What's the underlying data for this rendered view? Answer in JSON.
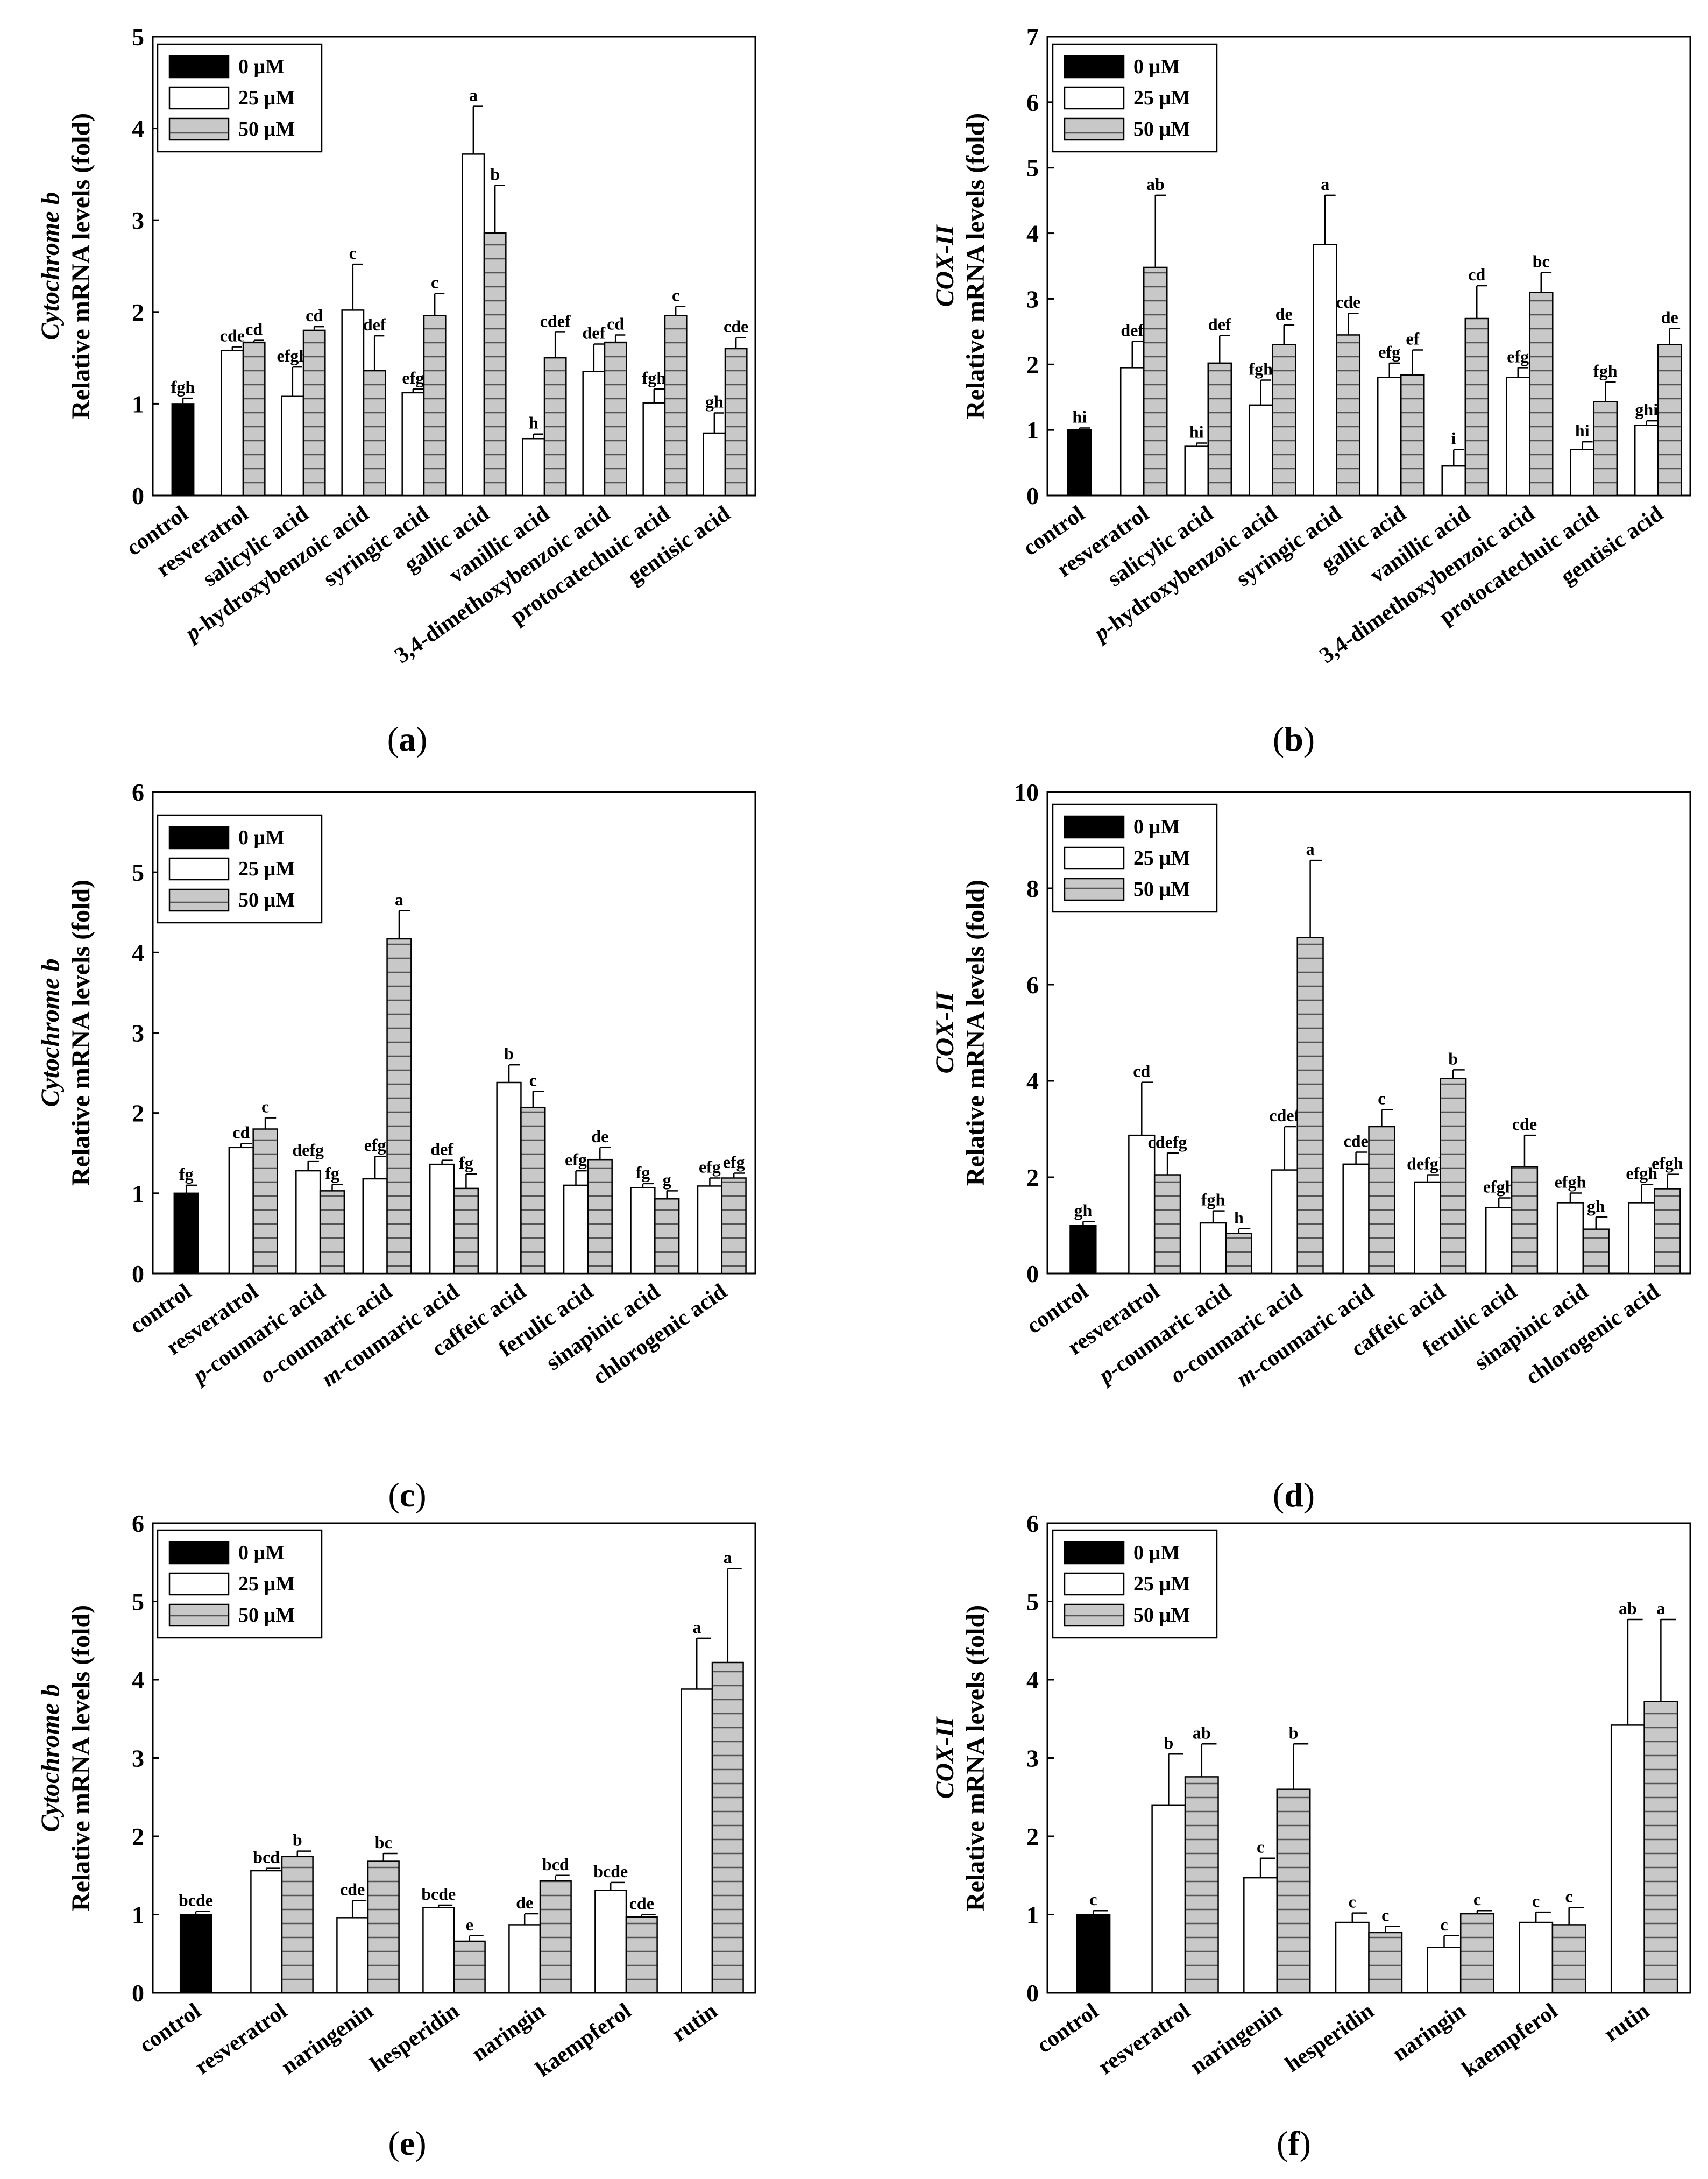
{
  "legend": [
    "0 µM",
    "25 µM",
    "50 µM"
  ],
  "colors": {
    "c0": "#000000",
    "c25": "#ffffff",
    "c50": "#c8c8c8",
    "stripe": "#555555"
  },
  "chart_data": [
    {
      "type": "bar",
      "panel": "a",
      "ylabel_gene": "Cytochrome b",
      "ylabel_unit": "Relative mRNA levels (fold)",
      "ylim": [
        0,
        5
      ],
      "yticks": [
        0,
        1,
        2,
        3,
        4,
        5
      ],
      "legend_position": "top-left",
      "categories": [
        "control",
        "resveratrol",
        "salicylic acid",
        "p-hydroxybenzoic acid",
        "syringic acid",
        "gallic acid",
        "vanillic acid",
        "3,4-dimethoxybenzoic acid",
        "protocatechuic acid",
        "gentisic acid"
      ],
      "series": [
        {
          "name": "25 µM",
          "values": [
            1.0,
            1.58,
            1.08,
            2.02,
            1.12,
            3.72,
            0.62,
            1.35,
            1.01,
            0.68
          ],
          "errors": [
            0.06,
            0.04,
            0.32,
            0.5,
            0.04,
            0.52,
            0.05,
            0.3,
            0.15,
            0.22
          ],
          "labels": [
            "fgh",
            "cde",
            "efgh",
            "c",
            "efg",
            "a",
            "h",
            "def",
            "fgh",
            "gh"
          ]
        },
        {
          "name": "50 µM",
          "values": [
            null,
            1.67,
            1.8,
            1.36,
            1.96,
            2.86,
            1.5,
            1.67,
            1.96,
            1.6
          ],
          "errors": [
            null,
            0.02,
            0.04,
            0.38,
            0.24,
            0.52,
            0.28,
            0.08,
            0.1,
            0.12
          ],
          "labels": [
            null,
            "cd",
            "cd",
            "def",
            "c",
            "b",
            "cdef",
            "cd",
            "c",
            "cde"
          ]
        }
      ]
    },
    {
      "type": "bar",
      "panel": "b",
      "ylabel_gene": "COX-II",
      "ylabel_unit": "Relative mRNA levels (fold)",
      "ylim": [
        0,
        7
      ],
      "yticks": [
        0,
        1,
        2,
        3,
        4,
        5,
        6,
        7
      ],
      "legend_position": "top-left",
      "categories": [
        "control",
        "resveratrol",
        "salicylic acid",
        "p-hydroxybenzoic acid",
        "syringic acid",
        "gallic acid",
        "vanillic acid",
        "3,4-dimethoxybenzoic acid",
        "protocatechuic acid",
        "gentisic acid"
      ],
      "series": [
        {
          "name": "25 µM",
          "values": [
            1.0,
            1.95,
            0.75,
            1.38,
            3.83,
            1.8,
            0.45,
            1.8,
            0.7,
            1.07
          ],
          "errors": [
            0.03,
            0.4,
            0.05,
            0.38,
            0.75,
            0.22,
            0.25,
            0.15,
            0.12,
            0.07
          ],
          "labels": [
            "hi",
            "def",
            "hi",
            "fgh",
            "a",
            "efg",
            "i",
            "efg",
            "hi",
            "ghi"
          ]
        },
        {
          "name": "50 µM",
          "values": [
            null,
            3.48,
            2.02,
            2.3,
            2.45,
            1.84,
            2.7,
            3.1,
            1.43,
            2.3
          ],
          "errors": [
            null,
            1.1,
            0.42,
            0.3,
            0.33,
            0.38,
            0.5,
            0.3,
            0.3,
            0.25
          ],
          "labels": [
            null,
            "ab",
            "def",
            "de",
            "cde",
            "ef",
            "cd",
            "bc",
            "fgh",
            "de"
          ]
        }
      ]
    },
    {
      "type": "bar",
      "panel": "c",
      "ylabel_gene": "Cytochrome b",
      "ylabel_unit": "Relative mRNA levels (fold)",
      "ylim": [
        0,
        6
      ],
      "yticks": [
        0,
        1,
        2,
        3,
        4,
        5,
        6
      ],
      "legend_position": "top-left",
      "categories": [
        "control",
        "resveratrol",
        "p-coumaric acid",
        "o-coumaric acid",
        "m-coumaric acid",
        "caffeic acid",
        "ferulic acid",
        "sinapinic acid",
        "chlorogenic acid"
      ],
      "series": [
        {
          "name": "25 µM",
          "values": [
            1.0,
            1.57,
            1.28,
            1.18,
            1.36,
            2.38,
            1.1,
            1.07,
            1.09
          ],
          "errors": [
            0.1,
            0.05,
            0.12,
            0.28,
            0.05,
            0.22,
            0.18,
            0.05,
            0.1
          ],
          "labels": [
            "fg",
            "cd",
            "defg",
            "efg",
            "def",
            "b",
            "efg",
            "fg",
            "efg"
          ]
        },
        {
          "name": "50 µM",
          "values": [
            null,
            1.8,
            1.03,
            4.17,
            1.06,
            2.07,
            1.42,
            0.93,
            1.19
          ],
          "errors": [
            null,
            0.14,
            0.08,
            0.35,
            0.18,
            0.2,
            0.15,
            0.1,
            0.06
          ],
          "labels": [
            null,
            "c",
            "fg",
            "a",
            "fg",
            "c",
            "de",
            "g",
            "efg"
          ]
        }
      ]
    },
    {
      "type": "bar",
      "panel": "d",
      "ylabel_gene": "COX-II",
      "ylabel_unit": "Relative mRNA levels (fold)",
      "ylim": [
        0,
        10
      ],
      "yticks": [
        0,
        2,
        4,
        6,
        8,
        10
      ],
      "legend_position": "top-left",
      "categories": [
        "control",
        "resveratrol",
        "p-coumaric acid",
        "o-coumaric acid",
        "m-coumaric acid",
        "caffeic acid",
        "ferulic acid",
        "sinapinic acid",
        "chlorogenic acid"
      ],
      "series": [
        {
          "name": "25 µM",
          "values": [
            1.0,
            2.87,
            1.05,
            2.15,
            2.27,
            1.9,
            1.37,
            1.47,
            1.47
          ],
          "errors": [
            0.08,
            1.1,
            0.25,
            0.9,
            0.25,
            0.15,
            0.2,
            0.2,
            0.38
          ],
          "labels": [
            "gh",
            "cd",
            "fgh",
            "cdef",
            "cde",
            "defgh",
            "efgh",
            "efgh",
            "efgh"
          ]
        },
        {
          "name": "50 µM",
          "values": [
            null,
            2.05,
            0.83,
            6.98,
            3.05,
            4.05,
            2.22,
            0.92,
            1.76
          ],
          "errors": [
            null,
            0.45,
            0.1,
            1.6,
            0.35,
            0.18,
            0.65,
            0.25,
            0.3
          ],
          "labels": [
            null,
            "cdefg",
            "h",
            "a",
            "c",
            "b",
            "cde",
            "gh",
            "efgh"
          ]
        }
      ]
    },
    {
      "type": "bar",
      "panel": "e",
      "ylabel_gene": "Cytochrome b",
      "ylabel_unit": "Relative mRNA levels (fold)",
      "ylim": [
        0,
        6
      ],
      "yticks": [
        0,
        1,
        2,
        3,
        4,
        5,
        6
      ],
      "legend_position": "top-left",
      "categories": [
        "control",
        "resveratrol",
        "naringenin",
        "hesperidin",
        "naringin",
        "kaempferol",
        "rutin"
      ],
      "series": [
        {
          "name": "25 µM",
          "values": [
            1.0,
            1.56,
            0.96,
            1.09,
            0.87,
            1.31,
            3.88
          ],
          "errors": [
            0.04,
            0.03,
            0.22,
            0.03,
            0.14,
            0.1,
            0.65
          ],
          "labels": [
            "bcde",
            "bcd",
            "cde",
            "bcde",
            "de",
            "bcde",
            "a"
          ]
        },
        {
          "name": "50 µM",
          "values": [
            null,
            1.74,
            1.68,
            0.66,
            1.43,
            0.97,
            4.22
          ],
          "errors": [
            null,
            0.07,
            0.1,
            0.07,
            0.07,
            0.03,
            1.2
          ],
          "labels": [
            null,
            "b",
            "bc",
            "e",
            "bcd",
            "cde",
            "a"
          ]
        }
      ]
    },
    {
      "type": "bar",
      "panel": "f",
      "ylabel_gene": "COX-II",
      "ylabel_unit": "Relative mRNA levels (fold)",
      "ylim": [
        0,
        6
      ],
      "yticks": [
        0,
        1,
        2,
        3,
        4,
        5,
        6
      ],
      "legend_position": "top-left",
      "categories": [
        "control",
        "resveratrol",
        "naringenin",
        "hesperidin",
        "naringin",
        "kaempferol",
        "rutin"
      ],
      "series": [
        {
          "name": "25 µM",
          "values": [
            1.0,
            2.4,
            1.47,
            0.9,
            0.58,
            0.9,
            3.42
          ],
          "errors": [
            0.05,
            0.65,
            0.25,
            0.12,
            0.15,
            0.13,
            1.35
          ],
          "labels": [
            "c",
            "b",
            "c",
            "c",
            "c",
            "c",
            "ab"
          ]
        },
        {
          "name": "50 µM",
          "values": [
            null,
            2.76,
            2.6,
            0.77,
            1.01,
            0.87,
            3.72
          ],
          "errors": [
            null,
            0.42,
            0.58,
            0.08,
            0.04,
            0.22,
            1.05
          ],
          "labels": [
            null,
            "ab",
            "b",
            "c",
            "c",
            "c",
            "a"
          ]
        }
      ]
    }
  ]
}
